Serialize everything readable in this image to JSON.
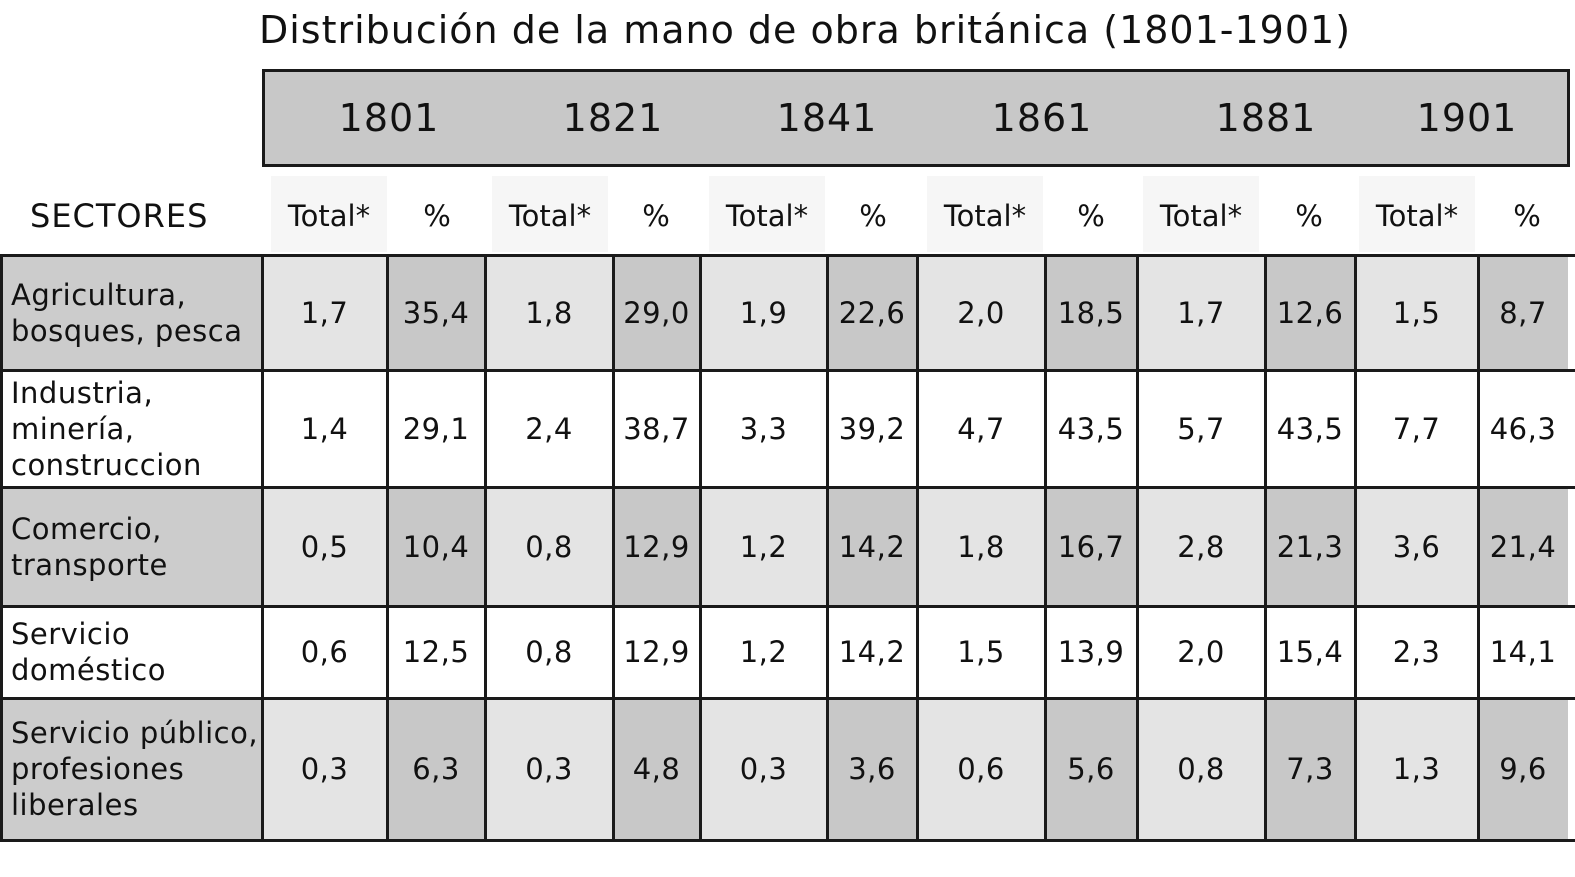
{
  "title": "Distribución de la mano de obra británica (1801-1901)",
  "header": {
    "sectores_label": "SECTORES",
    "total_label": "Total*",
    "pct_label": "%",
    "years": [
      "1801",
      "1821",
      "1841",
      "1861",
      "1881",
      "1901"
    ]
  },
  "rows": [
    {
      "label_lines": [
        "Agricultura,",
        "bosques, pesca"
      ],
      "values": [
        "1,7",
        "35,4",
        "1,8",
        "29,0",
        "1,9",
        "22,6",
        "2,0",
        "18,5",
        "1,7",
        "12,6",
        "1,5",
        "8,7"
      ],
      "shaded": true
    },
    {
      "label_lines": [
        "Industria,",
        "minería,",
        "construccion"
      ],
      "values": [
        "1,4",
        "29,1",
        "2,4",
        "38,7",
        "3,3",
        "39,2",
        "4,7",
        "43,5",
        "5,7",
        "43,5",
        "7,7",
        "46,3"
      ],
      "shaded": false
    },
    {
      "label_lines": [
        "Comercio,",
        "transporte"
      ],
      "values": [
        "0,5",
        "10,4",
        "0,8",
        "12,9",
        "1,2",
        "14,2",
        "1,8",
        "16,7",
        "2,8",
        "21,3",
        "3,6",
        "21,4"
      ],
      "shaded": true
    },
    {
      "label_lines": [
        "Servicio",
        "doméstico"
      ],
      "values": [
        "0,6",
        "12,5",
        "0,8",
        "12,9",
        "1,2",
        "14,2",
        "1,5",
        "13,9",
        "2,0",
        "15,4",
        "2,3",
        "14,1"
      ],
      "shaded": false
    },
    {
      "label_lines": [
        "Servicio público,",
        "profesiones",
        "liberales"
      ],
      "values": [
        "0,3",
        "6,3",
        "0,3",
        "4,8",
        "0,3",
        "3,6",
        "0,6",
        "5,6",
        "0,8",
        "7,3",
        "1,3",
        "9,6"
      ],
      "shaded": true
    }
  ],
  "colors": {
    "header_bar": "#c8c8c8",
    "label_cell_shaded": "#cccccc",
    "total_cell_shaded": "#e4e4e4",
    "pct_cell_shaded": "#c8c8c8",
    "cell_white": "#ffffff",
    "border": "#1a1a1a"
  }
}
